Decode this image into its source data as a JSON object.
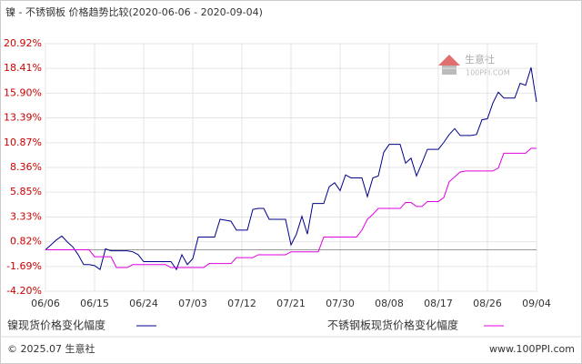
{
  "chart_data": {
    "type": "line",
    "title": "镍 - 不锈钢板 价格趋势比较(2020-06-06 - 2020-09-04)",
    "categories": [
      "06/06",
      null,
      null,
      null,
      null,
      null,
      null,
      null,
      null,
      "06/15",
      null,
      null,
      null,
      null,
      null,
      null,
      null,
      null,
      "06/24",
      null,
      null,
      null,
      null,
      null,
      null,
      null,
      null,
      "07/03",
      null,
      null,
      null,
      null,
      null,
      null,
      null,
      null,
      "07/12",
      null,
      null,
      null,
      null,
      null,
      null,
      null,
      null,
      "07/21",
      null,
      null,
      null,
      null,
      null,
      null,
      null,
      null,
      "07/30",
      null,
      null,
      null,
      null,
      null,
      null,
      null,
      null,
      "08/08",
      null,
      null,
      null,
      null,
      null,
      null,
      null,
      null,
      "08/17",
      null,
      null,
      null,
      null,
      null,
      null,
      null,
      null,
      "08/26",
      null,
      null,
      null,
      null,
      null,
      null,
      null,
      null,
      "09/04"
    ],
    "series": [
      {
        "name": "镍现货价格变化幅度",
        "color": "#00008b",
        "values": [
          0,
          0.5,
          1.0,
          1.4,
          0.8,
          0.3,
          -0.5,
          -1.5,
          -1.5,
          -1.6,
          -2.0,
          0.1,
          -0.1,
          -0.1,
          -0.1,
          -0.1,
          -0.2,
          -0.5,
          -1.2,
          -1.2,
          -1.2,
          -1.2,
          -1.2,
          -1.2,
          -2.0,
          -0.5,
          -1.5,
          -0.9,
          1.3,
          1.3,
          1.3,
          1.3,
          3.1,
          3.0,
          2.9,
          2.0,
          2.0,
          2.0,
          4.1,
          4.2,
          4.2,
          3.1,
          3.1,
          3.1,
          3.1,
          0.5,
          1.6,
          3.4,
          1.6,
          4.7,
          4.7,
          4.7,
          6.4,
          6.8,
          6.0,
          7.6,
          7.3,
          7.3,
          7.3,
          5.4,
          7.3,
          7.5,
          9.9,
          10.7,
          10.7,
          10.7,
          8.8,
          9.3,
          7.5,
          8.8,
          10.2,
          10.2,
          10.2,
          10.9,
          11.7,
          12.3,
          11.6,
          11.6,
          11.6,
          11.7,
          13.2,
          13.3,
          14.9,
          16.0,
          15.4,
          15.4,
          15.4,
          16.9,
          16.7,
          18.5,
          15.0
        ]
      },
      {
        "name": "不锈钢板现货价格变化幅度",
        "color": "#e000e0",
        "values": [
          0,
          0,
          0,
          0,
          0,
          0,
          0,
          0,
          0,
          -0.7,
          -0.7,
          -0.7,
          -0.7,
          -1.8,
          -1.8,
          -1.8,
          -1.5,
          -1.5,
          -1.5,
          -1.5,
          -1.5,
          -1.5,
          -1.5,
          -1.8,
          -1.8,
          -1.8,
          -1.8,
          -1.8,
          -1.8,
          -1.8,
          -1.4,
          -1.4,
          -1.4,
          -1.4,
          -1.4,
          -0.8,
          -0.8,
          -0.8,
          -0.8,
          -0.5,
          -0.5,
          -0.5,
          -0.5,
          -0.5,
          -0.5,
          -0.2,
          -0.2,
          -0.2,
          -0.2,
          -0.2,
          -0.2,
          1.3,
          1.3,
          1.3,
          1.3,
          1.3,
          1.3,
          1.3,
          2.0,
          3.1,
          3.6,
          4.2,
          4.2,
          4.2,
          4.2,
          4.2,
          4.8,
          4.8,
          4.4,
          4.4,
          4.9,
          4.9,
          4.9,
          5.3,
          6.9,
          7.4,
          7.9,
          8.0,
          8.0,
          8.0,
          8.0,
          8.0,
          8.0,
          8.3,
          9.8,
          9.8,
          9.8,
          9.8,
          9.8,
          10.3,
          10.3
        ]
      }
    ],
    "ylim": [
      -4.2,
      20.92
    ],
    "yticks": [
      {
        "value": 20.92,
        "label": "20.92%"
      },
      {
        "value": 18.41,
        "label": "18.41%"
      },
      {
        "value": 15.9,
        "label": "15.90%"
      },
      {
        "value": 13.39,
        "label": "13.39%"
      },
      {
        "value": 10.87,
        "label": "10.87%"
      },
      {
        "value": 8.36,
        "label": "8.36%"
      },
      {
        "value": 5.85,
        "label": "5.85%"
      },
      {
        "value": 3.33,
        "label": "3.33%"
      },
      {
        "value": 0.82,
        "label": "0.82%"
      },
      {
        "value": -1.69,
        "label": "-1.69%"
      },
      {
        "value": -4.2,
        "label": "-4.20%"
      }
    ],
    "grid": true,
    "watermark": {
      "name": "生意社",
      "site": "100PPI.COM"
    },
    "footer_left": "© 2025.07 生意社",
    "footer_right": "www.100PPI.com"
  }
}
